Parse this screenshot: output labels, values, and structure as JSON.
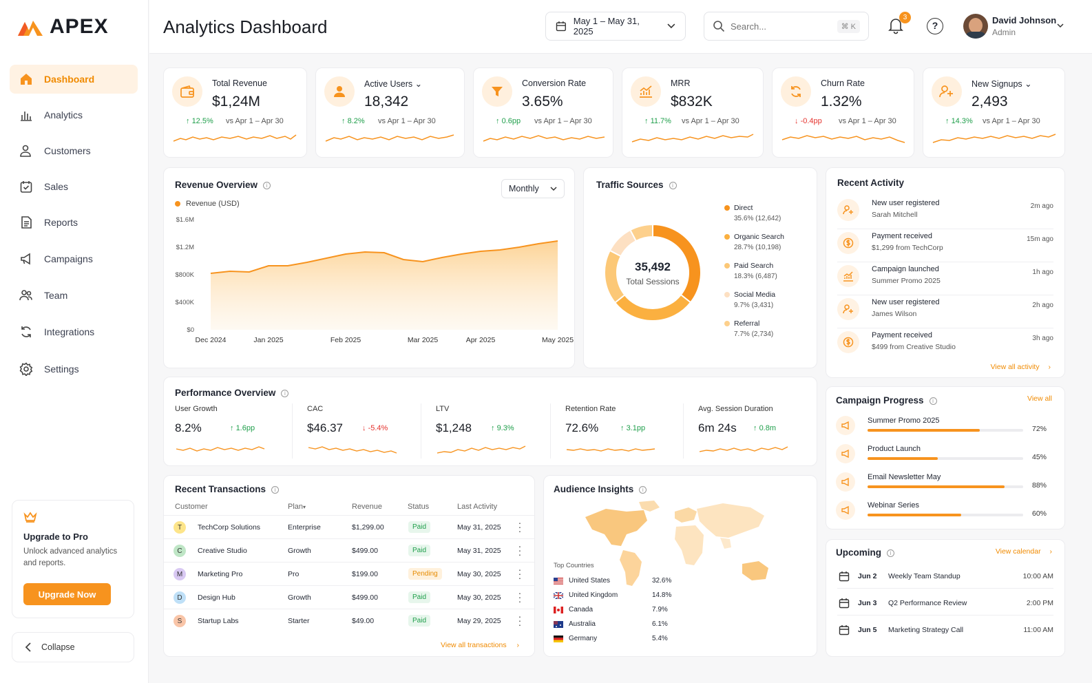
{
  "app": {
    "name": "APEX",
    "page_title": "Analytics Dashboard"
  },
  "colors": {
    "accent": "#f7931e",
    "accent_light": "#fff2e3",
    "success": "#1e9e4a",
    "danger": "#e5322d"
  },
  "sidebar": {
    "items": [
      {
        "label": "Dashboard",
        "icon": "home-icon",
        "active": true
      },
      {
        "label": "Analytics",
        "icon": "bar-chart-icon"
      },
      {
        "label": "Customers",
        "icon": "users-icon"
      },
      {
        "label": "Sales",
        "icon": "calendar-check-icon"
      },
      {
        "label": "Reports",
        "icon": "document-icon"
      },
      {
        "label": "Campaigns",
        "icon": "megaphone-icon"
      },
      {
        "label": "Team",
        "icon": "team-icon"
      },
      {
        "label": "Integrations",
        "icon": "sync-icon"
      },
      {
        "label": "Settings",
        "icon": "gear-icon"
      }
    ],
    "upgrade": {
      "title": "Upgrade to Pro",
      "text": "Unlock advanced analytics and reports.",
      "button": "Upgrade Now"
    },
    "collapse": "Collapse"
  },
  "header": {
    "date_range": "May 1 – May 31, 2025",
    "search_placeholder": "Search...",
    "search_shortcut": "⌘ K",
    "notifications": "3",
    "user": {
      "name": "David Johnson",
      "role": "Admin"
    }
  },
  "kpis": [
    {
      "label": "Total Revenue",
      "value": "$1,24M",
      "delta": "12.5%",
      "dir": "up",
      "compare": "vs Apr 1 – Apr 30",
      "icon": "wallet-icon"
    },
    {
      "label": "Active Users",
      "value": "18,342",
      "delta": "8.2%",
      "dir": "up",
      "compare": "vs Apr 1 – Apr 30",
      "icon": "user-icon",
      "dropdown": "⌄"
    },
    {
      "label": "Conversion Rate",
      "value": "3.65%",
      "delta": "0.6pp",
      "dir": "up",
      "compare": "vs Apr 1 – Apr 30",
      "icon": "funnel-icon"
    },
    {
      "label": "MRR",
      "value": "$832K",
      "delta": "11.7%",
      "dir": "up",
      "compare": "vs Apr 1 – Apr 30",
      "icon": "growth-chart-icon"
    },
    {
      "label": "Churn Rate",
      "value": "1.32%",
      "delta": "-0.4pp",
      "dir": "down",
      "compare": "vs Apr 1 – Apr 30",
      "icon": "refresh-icon"
    },
    {
      "label": "New Signups",
      "value": "2,493",
      "delta": "14.3%",
      "dir": "up",
      "compare": "vs Apr 1 – Apr 30",
      "icon": "user-plus-icon",
      "dropdown": "⌄"
    }
  ],
  "revenue": {
    "title": "Revenue Overview",
    "period": "Monthly",
    "chart_data": {
      "type": "area",
      "series": [
        {
          "name": "Revenue (USD)",
          "values": [
            0.82,
            0.85,
            0.84,
            0.93,
            0.93,
            0.98,
            1.04,
            1.1,
            1.13,
            1.12,
            1.02,
            0.99,
            1.05,
            1.1,
            1.14,
            1.16,
            1.2,
            1.25,
            1.29
          ]
        }
      ],
      "x": [
        "Dec 2024",
        "",
        "",
        "Jan 2025",
        "",
        "",
        "",
        "Feb 2025",
        "",
        "",
        "",
        "Mar 2025",
        "",
        "",
        "Apr 2025",
        "",
        "",
        "",
        "May 2025"
      ],
      "x_tick_labels": [
        "Dec 2024",
        "Jan 2025",
        "Feb 2025",
        "Mar 2025",
        "Apr 2025",
        "May 2025"
      ],
      "y_tick_labels": [
        "$1.6M",
        "$1.2M",
        "$800K",
        "$400K",
        "$0"
      ],
      "ylim": [
        0,
        1.6
      ],
      "legend": "Revenue (USD)"
    }
  },
  "traffic": {
    "title": "Traffic Sources",
    "center_value": "35,492",
    "center_label": "Total Sessions",
    "chart_data": {
      "type": "pie",
      "slices": [
        {
          "name": "Direct",
          "pct": 35.6,
          "detail": "35.6% (12,642)",
          "color": "#f7931e"
        },
        {
          "name": "Organic Search",
          "pct": 28.7,
          "detail": "28.7% (10,198)",
          "color": "#fbb040"
        },
        {
          "name": "Paid Search",
          "pct": 18.3,
          "detail": "18.3% (6,487)",
          "color": "#fcc877"
        },
        {
          "name": "Social Media",
          "pct": 9.7,
          "detail": "9.7% (3,431)",
          "color": "#fde0c2"
        },
        {
          "name": "Referral",
          "pct": 7.7,
          "detail": "7.7% (2,734)",
          "color": "#fdd08c"
        }
      ]
    }
  },
  "activity": {
    "title": "Recent Activity",
    "view_all": "View all activity",
    "items": [
      {
        "title": "New user registered",
        "sub": "Sarah Mitchell",
        "time": "2m ago",
        "icon": "user-plus-icon"
      },
      {
        "title": "Payment received",
        "sub": "$1,299 from TechCorp",
        "time": "15m ago",
        "icon": "dollar-icon"
      },
      {
        "title": "Campaign launched",
        "sub": "Summer Promo 2025",
        "time": "1h ago",
        "icon": "growth-chart-icon"
      },
      {
        "title": "New user registered",
        "sub": "James Wilson",
        "time": "2h ago",
        "icon": "user-plus-icon"
      },
      {
        "title": "Payment received",
        "sub": "$499 from Creative Studio",
        "time": "3h ago",
        "icon": "dollar-icon"
      }
    ]
  },
  "performance": {
    "title": "Performance Overview",
    "metrics": [
      {
        "label": "User Growth",
        "value": "8.2%",
        "delta": "1.6pp",
        "dir": "up"
      },
      {
        "label": "CAC",
        "value": "$46.37",
        "delta": "-5.4%",
        "dir": "down"
      },
      {
        "label": "LTV",
        "value": "$1,248",
        "delta": "9.3%",
        "dir": "up"
      },
      {
        "label": "Retention Rate",
        "value": "72.6%",
        "delta": "3.1pp",
        "dir": "up"
      },
      {
        "label": "Avg. Session Duration",
        "value": "6m 24s",
        "delta": "0.8m",
        "dir": "up"
      }
    ]
  },
  "campaigns": {
    "title": "Campaign Progress",
    "view_all": "View all",
    "items": [
      {
        "name": "Summer Promo 2025",
        "pct": 0.72,
        "label": "72%",
        "icon": "megaphone-icon"
      },
      {
        "name": "Product Launch",
        "pct": 0.45,
        "label": "45%",
        "icon": "rocket-icon"
      },
      {
        "name": "Email Newsletter May",
        "pct": 0.88,
        "label": "88%",
        "icon": "mail-icon"
      },
      {
        "name": "Webinar Series",
        "pct": 0.6,
        "label": "60%",
        "icon": "video-icon"
      }
    ]
  },
  "transactions": {
    "title": "Recent Transactions",
    "view_all": "View all transactions",
    "columns": [
      "Customer",
      "Plan",
      "Revenue",
      "Status",
      "Last Activity"
    ],
    "plan_sort": "▾",
    "rows": [
      {
        "initial": "T",
        "color": "#fde58a",
        "customer": "TechCorp Solutions",
        "plan": "Enterprise",
        "revenue": "$1,299.00",
        "status": "Paid",
        "date": "May 31, 2025"
      },
      {
        "initial": "C",
        "color": "#bfe6c6",
        "customer": "Creative Studio",
        "plan": "Growth",
        "revenue": "$499.00",
        "status": "Paid",
        "date": "May 31, 2025"
      },
      {
        "initial": "M",
        "color": "#d9c9f3",
        "customer": "Marketing Pro",
        "plan": "Pro",
        "revenue": "$199.00",
        "status": "Pending",
        "date": "May 30, 2025"
      },
      {
        "initial": "D",
        "color": "#bfe0f7",
        "customer": "Design Hub",
        "plan": "Growth",
        "revenue": "$499.00",
        "status": "Paid",
        "date": "May 30, 2025"
      },
      {
        "initial": "S",
        "color": "#f9c5a8",
        "customer": "Startup Labs",
        "plan": "Starter",
        "revenue": "$49.00",
        "status": "Paid",
        "date": "May 29, 2025"
      }
    ]
  },
  "audience": {
    "title": "Audience Insights",
    "top_label": "Top Countries",
    "countries": [
      {
        "name": "United States",
        "pct": "32.6%",
        "flag": "us-flag-icon"
      },
      {
        "name": "United Kingdom",
        "pct": "14.8%",
        "flag": "uk-flag-icon"
      },
      {
        "name": "Canada",
        "pct": "7.9%",
        "flag": "ca-flag-icon"
      },
      {
        "name": "Australia",
        "pct": "6.1%",
        "flag": "au-flag-icon"
      },
      {
        "name": "Germany",
        "pct": "5.4%",
        "flag": "de-flag-icon"
      }
    ]
  },
  "upcoming": {
    "title": "Upcoming",
    "view_all": "View calendar",
    "items": [
      {
        "date": "Jun 2",
        "name": "Weekly Team Standup",
        "time": "10:00 AM"
      },
      {
        "date": "Jun 3",
        "name": "Q2 Performance Review",
        "time": "2:00 PM"
      },
      {
        "date": "Jun 5",
        "name": "Marketing Strategy Call",
        "time": "11:00 AM"
      }
    ]
  }
}
